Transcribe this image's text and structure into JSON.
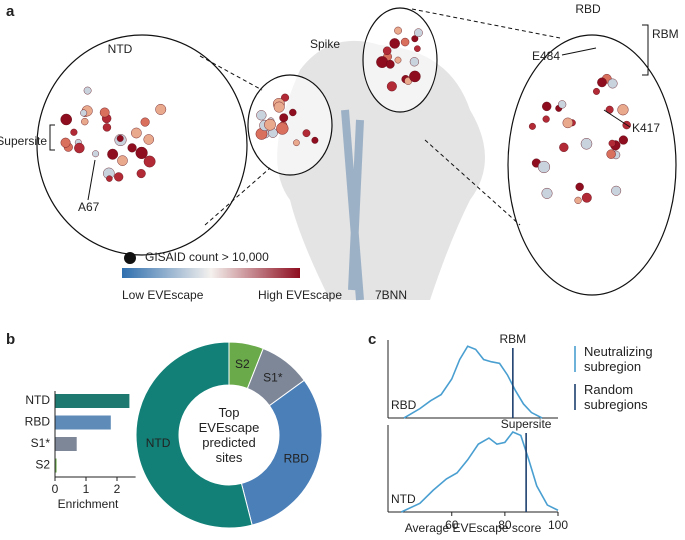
{
  "panel_a": {
    "label": "a",
    "ntd": "NTD",
    "spike": "Spike",
    "rbd": "RBD",
    "rbm": "RBM",
    "e484": "E484",
    "k417": "K417",
    "supersite": "Supersite",
    "a67": "A67",
    "gisaid": "GISAID count > 10,000",
    "low": "Low EVEscape",
    "high": "High EVEscape",
    "pdb": "7BNN"
  },
  "panel_b": {
    "label": "b"
  },
  "panel_c": {
    "label": "c"
  },
  "chart_data": [
    {
      "type": "bar",
      "orientation": "horizontal",
      "categories": [
        "NTD",
        "RBD",
        "S1*",
        "S2"
      ],
      "values": [
        2.4,
        1.8,
        0.7,
        0.05
      ],
      "colors": [
        "#1e7a70",
        "#5f8bb8",
        "#7d8798",
        "#6aaa4a"
      ],
      "xlabel": "Enrichment",
      "xlim": [
        0,
        2.6
      ],
      "xticks": [
        0,
        1,
        2
      ]
    },
    {
      "type": "pie",
      "donut": true,
      "center_text": "Top EVEscape predicted sites",
      "categories": [
        "S2",
        "S1*",
        "RBD",
        "NTD"
      ],
      "values": [
        6,
        9,
        31,
        54
      ],
      "colors": [
        "#6aaa4a",
        "#7d8798",
        "#4a7fb8",
        "#128077"
      ]
    },
    {
      "type": "line",
      "panel_label": "RBD",
      "x": [
        42,
        48,
        52,
        56,
        60,
        63,
        66,
        69,
        72,
        75,
        78,
        81,
        84,
        87,
        90,
        94
      ],
      "values": [
        0,
        0.12,
        0.22,
        0.3,
        0.5,
        0.75,
        0.92,
        0.88,
        0.75,
        0.72,
        0.7,
        0.55,
        0.35,
        0.18,
        0.07,
        0
      ],
      "color": "#4a9fd1",
      "xlim": [
        36,
        100
      ],
      "ylim": [
        0,
        1
      ],
      "vline": {
        "value": 83,
        "label": "RBM",
        "color": "#1d3f6e"
      },
      "legend": [
        {
          "name": "Neutralizing subregion",
          "color": "#4a9fd1"
        },
        {
          "name": "Random subregions",
          "color": "#1d3f6e"
        }
      ]
    },
    {
      "type": "line",
      "panel_label": "NTD",
      "x": [
        41,
        48,
        53,
        58,
        62,
        66,
        70,
        74,
        77,
        80,
        83,
        86,
        89,
        92,
        96,
        100
      ],
      "values": [
        0,
        0.1,
        0.25,
        0.38,
        0.45,
        0.6,
        0.78,
        0.85,
        0.78,
        0.8,
        0.92,
        0.88,
        0.6,
        0.3,
        0.08,
        0.02
      ],
      "color": "#4a9fd1",
      "xlim": [
        36,
        100
      ],
      "ylim": [
        0,
        1
      ],
      "xticks": [
        60,
        80,
        100
      ],
      "xlabel": "Average EVEscape score",
      "vline": {
        "value": 88,
        "label": "Supersite",
        "color": "#1d3f6e"
      }
    }
  ]
}
